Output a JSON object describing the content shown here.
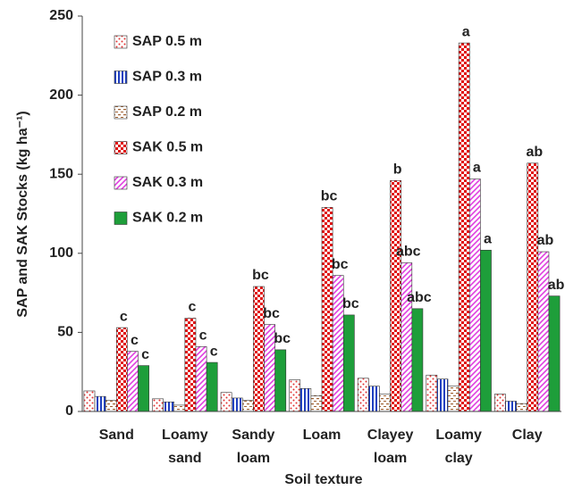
{
  "chart_data": {
    "type": "bar",
    "y_label": "SAP and SAK Stocks (kg ha⁻¹)",
    "x_label": "Soil texture",
    "categories": [
      "Sand",
      "Loamy sand",
      "Sandy loam",
      "Loam",
      "Clayey loam",
      "Loamy clay",
      "Clay"
    ],
    "ylim": [
      0,
      250
    ],
    "yticks": [
      0,
      50,
      100,
      150,
      200,
      250
    ],
    "grid": false,
    "legend": "upper left",
    "series": [
      {
        "name": "SAP 0.5 m",
        "color": "#e03030",
        "pattern": "dots",
        "values": [
          13,
          8,
          12,
          20,
          21,
          23,
          11
        ]
      },
      {
        "name": "SAP 0.3 m",
        "color": "#2040c0",
        "pattern": "vstripes",
        "values": [
          9.5,
          6,
          8.5,
          14.5,
          16,
          20.5,
          6.5
        ]
      },
      {
        "name": "SAP 0.2 m",
        "color": "#a06030",
        "pattern": "dashes",
        "values": [
          7,
          4,
          7,
          10,
          11,
          16,
          5
        ]
      },
      {
        "name": "SAK 0.5 m",
        "color": "#e01010",
        "pattern": "checker",
        "values": [
          53,
          59,
          79,
          129,
          146,
          233,
          157
        ],
        "labels": [
          "c",
          "c",
          "bc",
          "bc",
          "b",
          "a",
          "ab"
        ]
      },
      {
        "name": "SAK 0.3 m",
        "color": "#e040e0",
        "pattern": "diagonal",
        "values": [
          38,
          41,
          55,
          86,
          94,
          147,
          101
        ],
        "labels": [
          "c",
          "c",
          "bc",
          "bc",
          "abc",
          "a",
          "ab"
        ]
      },
      {
        "name": "SAK 0.2 m",
        "color": "#1e9e3a",
        "pattern": "solid",
        "values": [
          29,
          31,
          39,
          61,
          65,
          102,
          73
        ],
        "labels": [
          "c",
          "c",
          "bc",
          "bc",
          "abc",
          "a",
          "ab"
        ]
      }
    ]
  }
}
